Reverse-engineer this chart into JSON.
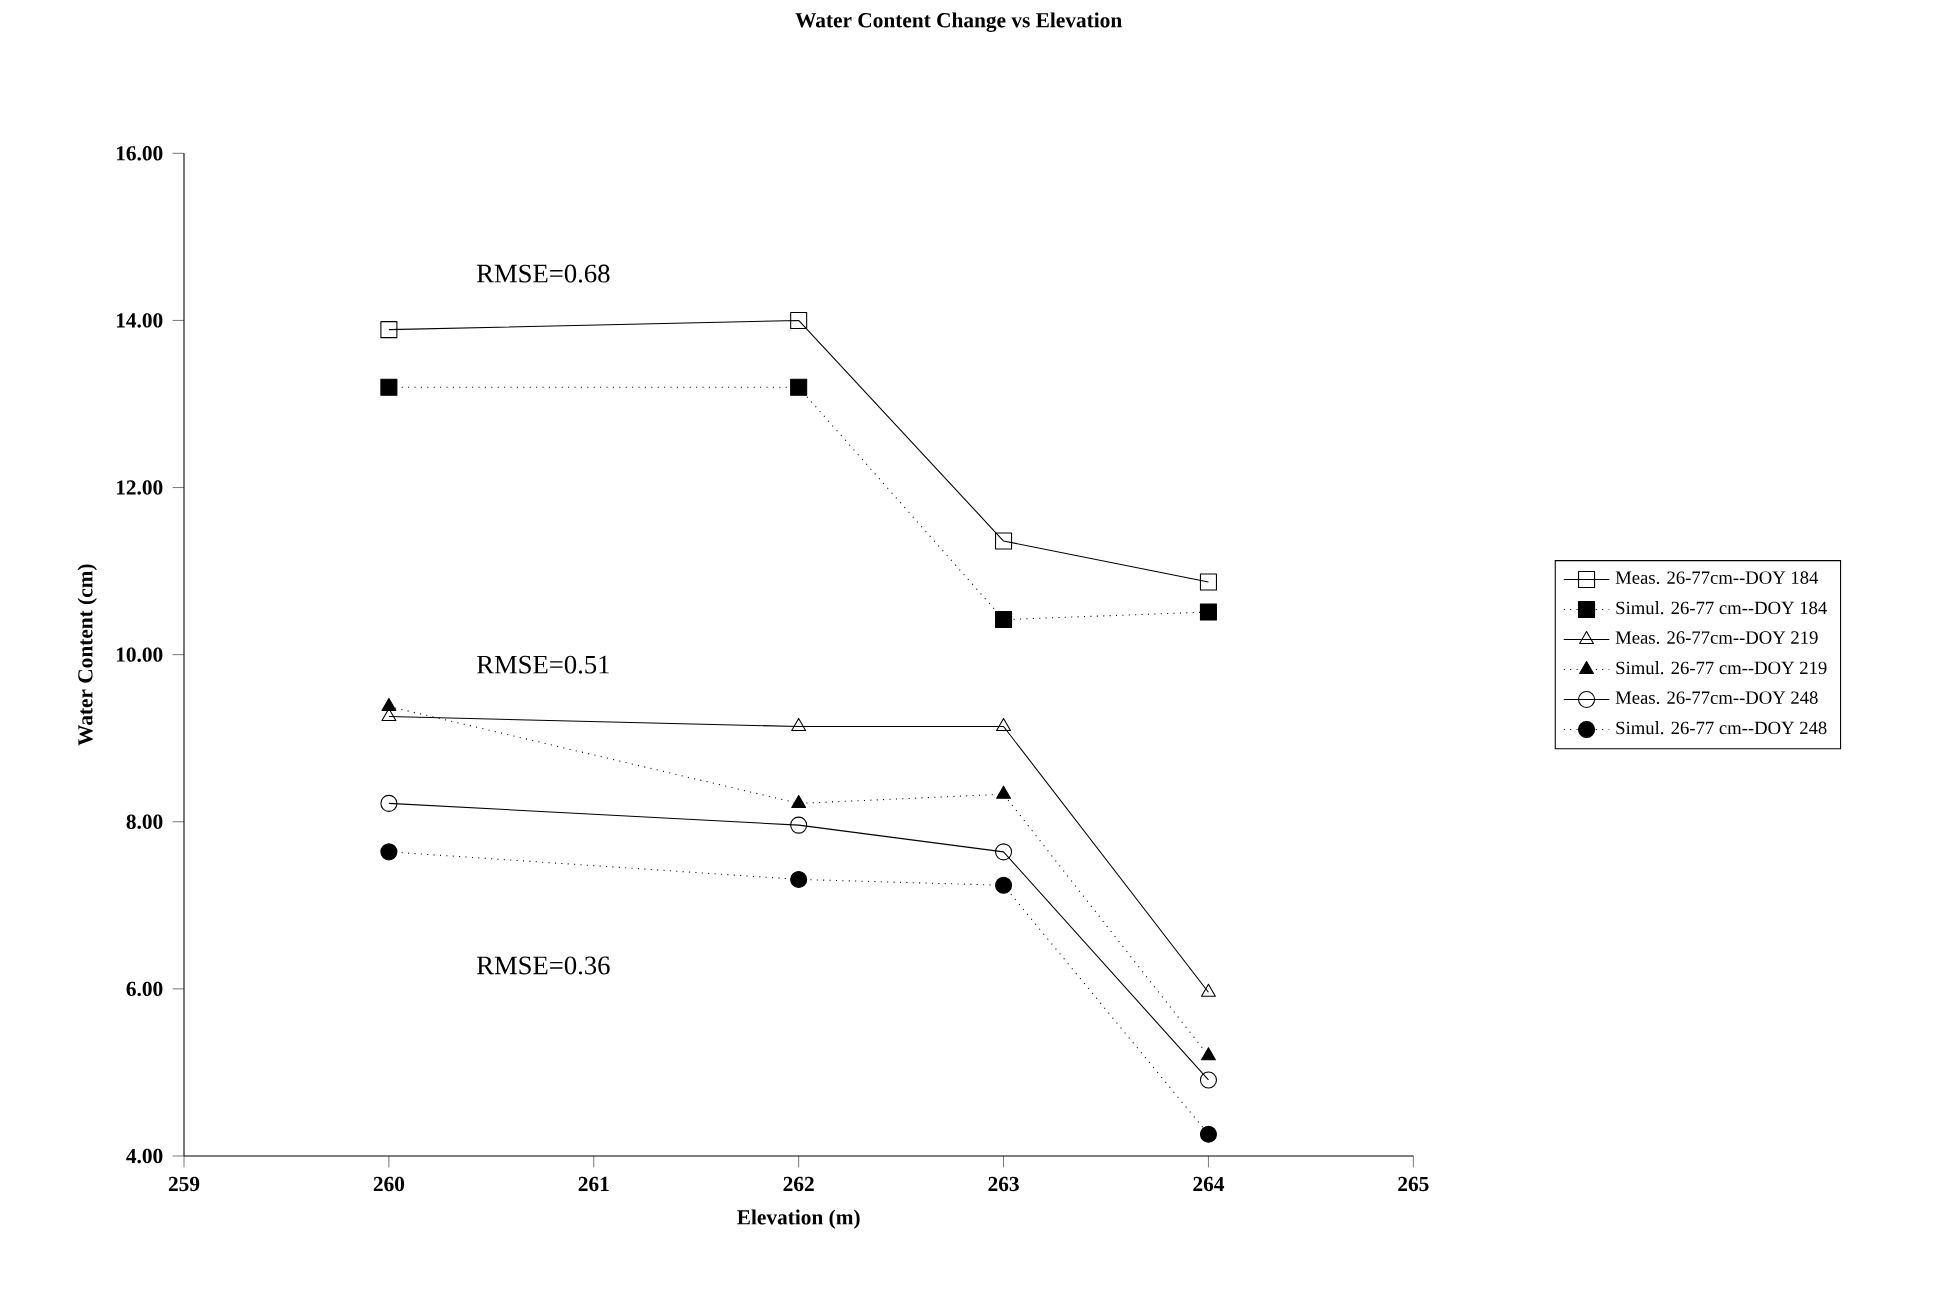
{
  "chart_data": {
    "type": "line",
    "title": "Water Content Change vs Elevation",
    "xlabel": "Elevation (m)",
    "ylabel": "Water Content (cm)",
    "x": [
      260,
      262,
      263,
      264
    ],
    "xlim": [
      259,
      265
    ],
    "xticks": [
      259,
      260,
      261,
      262,
      263,
      264,
      265
    ],
    "ylim": [
      4,
      16
    ],
    "yticks": [
      {
        "value": 4,
        "label": "4.00"
      },
      {
        "value": 6,
        "label": "6.00"
      },
      {
        "value": 8,
        "label": "8.00"
      },
      {
        "value": 10,
        "label": "10.00"
      },
      {
        "value": 12,
        "label": "12.00"
      },
      {
        "value": 14,
        "label": "14.00"
      },
      {
        "value": 16,
        "label": "16.00"
      }
    ],
    "legend": "right",
    "series": [
      {
        "name": "Meas. 26-77cm--DOY 184",
        "color": "#000000",
        "marker": "square",
        "line_style": "solid",
        "values": [
          13.89,
          14.0,
          11.36,
          10.87
        ]
      },
      {
        "name": "Simul. 26-77 cm--DOY 184",
        "color": "#000000",
        "marker": "square",
        "line_style": "dotted",
        "values": [
          13.2,
          13.2,
          10.42,
          10.51
        ]
      },
      {
        "name": "Meas. 26-77cm--DOY 219",
        "color": "#000000",
        "marker": "triangle",
        "line_style": "solid",
        "values": [
          9.26,
          9.14,
          9.14,
          5.96
        ]
      },
      {
        "name": "Simul. 26-77 cm--DOY 219",
        "color": "#000000",
        "marker": "triangle",
        "line_style": "dotted",
        "values": [
          9.38,
          8.22,
          8.33,
          5.2
        ]
      },
      {
        "name": "Meas. 26-77cm--DOY 248",
        "color": "#000000",
        "marker": "circle",
        "line_style": "solid",
        "values": [
          8.22,
          7.96,
          7.64,
          4.91
        ]
      },
      {
        "name": "Simul. 26-77 cm--DOY 248",
        "color": "#000000",
        "marker": "circle",
        "line_style": "dotted",
        "values": [
          7.64,
          7.31,
          7.24,
          4.26
        ]
      }
    ],
    "annotations": [
      "RMSE=0.68",
      "RMSE=0.51",
      "RMSE=0.36"
    ]
  }
}
